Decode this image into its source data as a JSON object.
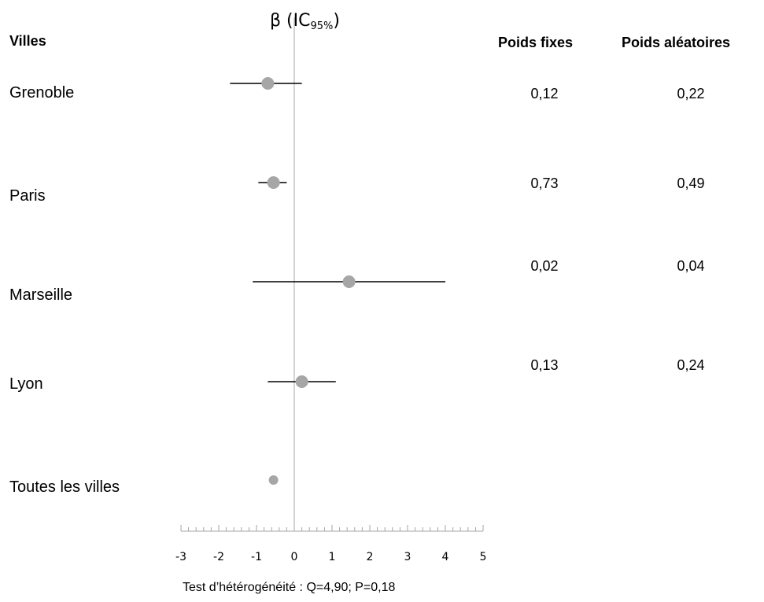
{
  "headers": {
    "villes": "Villes",
    "beta_main": "β (IC",
    "beta_sub": "95%",
    "beta_close": ")",
    "poids_fixes": "Poids fixes",
    "poids_aleatoires": "Poids aléatoires"
  },
  "rows": [
    {
      "ville": "Grenoble",
      "poids_fixes": "0,12",
      "poids_aleatoires": "0,22"
    },
    {
      "ville": "Paris",
      "poids_fixes": "0,73",
      "poids_aleatoires": "0,49"
    },
    {
      "ville": "Marseille",
      "poids_fixes": "0,02",
      "poids_aleatoires": "0,04"
    },
    {
      "ville": "Lyon",
      "poids_fixes": "0,13",
      "poids_aleatoires": "0,24"
    },
    {
      "ville": "Toutes les villes",
      "poids_fixes": "",
      "poids_aleatoires": ""
    }
  ],
  "footnote": "Test d’hétérogénéité : Q=4,90; P=0,18",
  "chart_data": {
    "type": "forest",
    "x_ticks": [
      "-3",
      "-2",
      "-1",
      "0",
      "1",
      "2",
      "3",
      "4",
      "5"
    ],
    "xlim": [
      -3,
      5
    ],
    "reference_line": 0,
    "points": [
      {
        "name": "Grenoble",
        "estimate": -0.7,
        "lower": -1.7,
        "upper": 0.2
      },
      {
        "name": "Paris",
        "estimate": -0.55,
        "lower": -0.95,
        "upper": -0.2
      },
      {
        "name": "Marseille",
        "estimate": 1.45,
        "lower": -1.1,
        "upper": 4.0
      },
      {
        "name": "Lyon",
        "estimate": 0.2,
        "lower": -0.7,
        "upper": 1.1
      },
      {
        "name": "Toutes les villes",
        "estimate": -0.55,
        "lower": null,
        "upper": null
      }
    ],
    "colors": {
      "marker": "#a6a6a6",
      "line": "#000000",
      "ref_line": "#a6a6a6"
    }
  }
}
